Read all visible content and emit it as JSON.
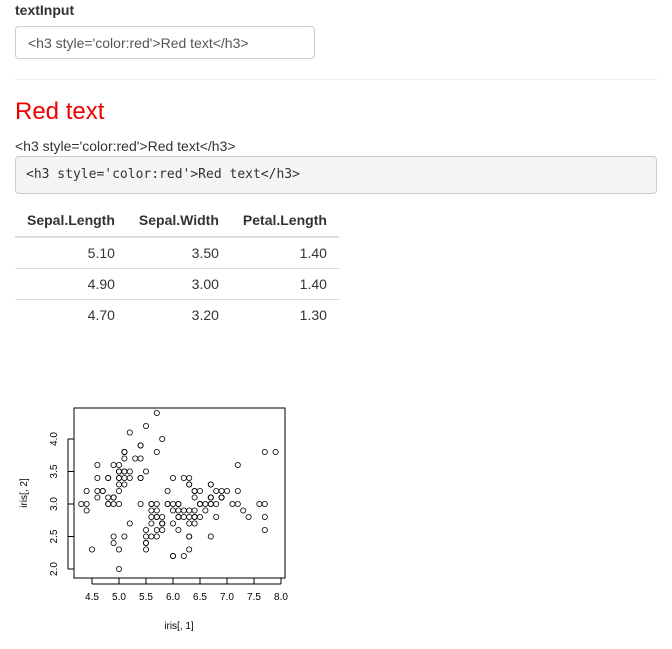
{
  "input": {
    "label": "textInput",
    "value": "<h3 style='color:red'>Red text</h3>"
  },
  "output": {
    "heading": "Red text",
    "text": "<h3 style='color:red'>Red text</h3>",
    "verbatim": "<h3 style='color:red'>Red text</h3>"
  },
  "table": {
    "headers": [
      "Sepal.Length",
      "Sepal.Width",
      "Petal.Length"
    ],
    "rows": [
      [
        "5.10",
        "3.50",
        "1.40"
      ],
      [
        "4.90",
        "3.00",
        "1.40"
      ],
      [
        "4.70",
        "3.20",
        "1.30"
      ]
    ]
  },
  "chart_data": {
    "type": "scatter",
    "xlabel": "iris[, 1]",
    "ylabel": "iris[, 2]",
    "xlim": [
      4.3,
      7.9
    ],
    "ylim": [
      2.0,
      4.4
    ],
    "xticks": [
      "4.5",
      "5.0",
      "5.5",
      "6.0",
      "6.5",
      "7.0",
      "7.5",
      "8.0"
    ],
    "yticks": [
      "2.0",
      "2.5",
      "3.0",
      "3.5",
      "4.0"
    ],
    "x": [
      5.1,
      4.9,
      4.7,
      4.6,
      5.0,
      5.4,
      4.6,
      5.0,
      4.4,
      4.9,
      5.4,
      4.8,
      4.8,
      4.3,
      5.8,
      5.7,
      5.4,
      5.1,
      5.7,
      5.1,
      5.4,
      5.1,
      4.6,
      5.1,
      4.8,
      5.0,
      5.0,
      5.2,
      5.2,
      4.7,
      4.8,
      5.4,
      5.2,
      5.5,
      4.9,
      5.0,
      5.5,
      4.9,
      4.4,
      5.1,
      5.0,
      4.5,
      4.4,
      5.0,
      5.1,
      4.8,
      5.1,
      4.6,
      5.3,
      5.0,
      7.0,
      6.4,
      6.9,
      5.5,
      6.5,
      5.7,
      6.3,
      4.9,
      6.6,
      5.2,
      5.0,
      5.9,
      6.0,
      6.1,
      5.6,
      6.7,
      5.6,
      5.8,
      6.2,
      5.6,
      5.9,
      6.1,
      6.3,
      6.1,
      6.4,
      6.6,
      6.8,
      6.7,
      6.0,
      5.7,
      5.5,
      5.5,
      5.8,
      6.0,
      5.4,
      6.0,
      6.7,
      6.3,
      5.6,
      5.5,
      5.5,
      6.1,
      5.8,
      5.0,
      5.6,
      5.7,
      5.7,
      6.2,
      5.1,
      5.7,
      6.3,
      5.8,
      7.1,
      6.3,
      6.5,
      7.6,
      4.9,
      7.3,
      6.7,
      7.2,
      6.5,
      6.4,
      6.8,
      5.7,
      5.8,
      6.4,
      6.5,
      7.7,
      7.7,
      6.0,
      6.9,
      5.6,
      7.7,
      6.3,
      6.7,
      7.2,
      6.2,
      6.1,
      6.4,
      7.2,
      7.4,
      7.9,
      6.4,
      6.3,
      6.1,
      7.7,
      6.3,
      6.4,
      6.0,
      6.9,
      6.7,
      6.9,
      5.8,
      6.8,
      6.7,
      6.7,
      6.3,
      6.5,
      6.2,
      5.9
    ],
    "y": [
      3.5,
      3.0,
      3.2,
      3.1,
      3.6,
      3.9,
      3.4,
      3.4,
      2.9,
      3.1,
      3.7,
      3.4,
      3.0,
      3.0,
      4.0,
      4.4,
      3.9,
      3.5,
      3.8,
      3.8,
      3.4,
      3.7,
      3.6,
      3.3,
      3.4,
      3.0,
      3.4,
      3.5,
      3.4,
      3.2,
      3.1,
      3.4,
      4.1,
      4.2,
      3.1,
      3.2,
      3.5,
      3.6,
      3.0,
      3.4,
      3.5,
      2.3,
      3.2,
      3.5,
      3.8,
      3.0,
      3.8,
      3.2,
      3.7,
      3.3,
      3.2,
      3.2,
      3.1,
      2.3,
      2.8,
      2.8,
      3.3,
      2.4,
      2.9,
      2.7,
      2.0,
      3.0,
      2.2,
      2.9,
      2.9,
      3.1,
      3.0,
      2.7,
      2.2,
      2.5,
      3.2,
      2.8,
      2.5,
      2.8,
      2.9,
      3.0,
      2.8,
      3.0,
      2.9,
      2.6,
      2.4,
      2.4,
      2.7,
      2.7,
      3.0,
      3.4,
      3.1,
      2.3,
      3.0,
      2.5,
      2.6,
      3.0,
      2.6,
      2.3,
      2.7,
      3.0,
      2.9,
      2.9,
      2.5,
      2.8,
      3.3,
      2.7,
      3.0,
      2.9,
      3.0,
      3.0,
      2.5,
      2.9,
      2.5,
      3.6,
      3.2,
      2.7,
      3.0,
      2.5,
      2.8,
      3.2,
      3.0,
      3.8,
      2.6,
      2.2,
      3.2,
      2.8,
      2.8,
      2.7,
      3.3,
      3.2,
      2.8,
      3.0,
      2.8,
      3.0,
      2.8,
      3.8,
      2.8,
      2.8,
      2.6,
      3.0,
      3.4,
      3.1,
      3.0,
      3.1,
      3.1,
      3.1,
      2.7,
      3.2,
      3.3,
      3.0,
      2.5,
      3.0,
      3.4,
      3.0
    ]
  }
}
